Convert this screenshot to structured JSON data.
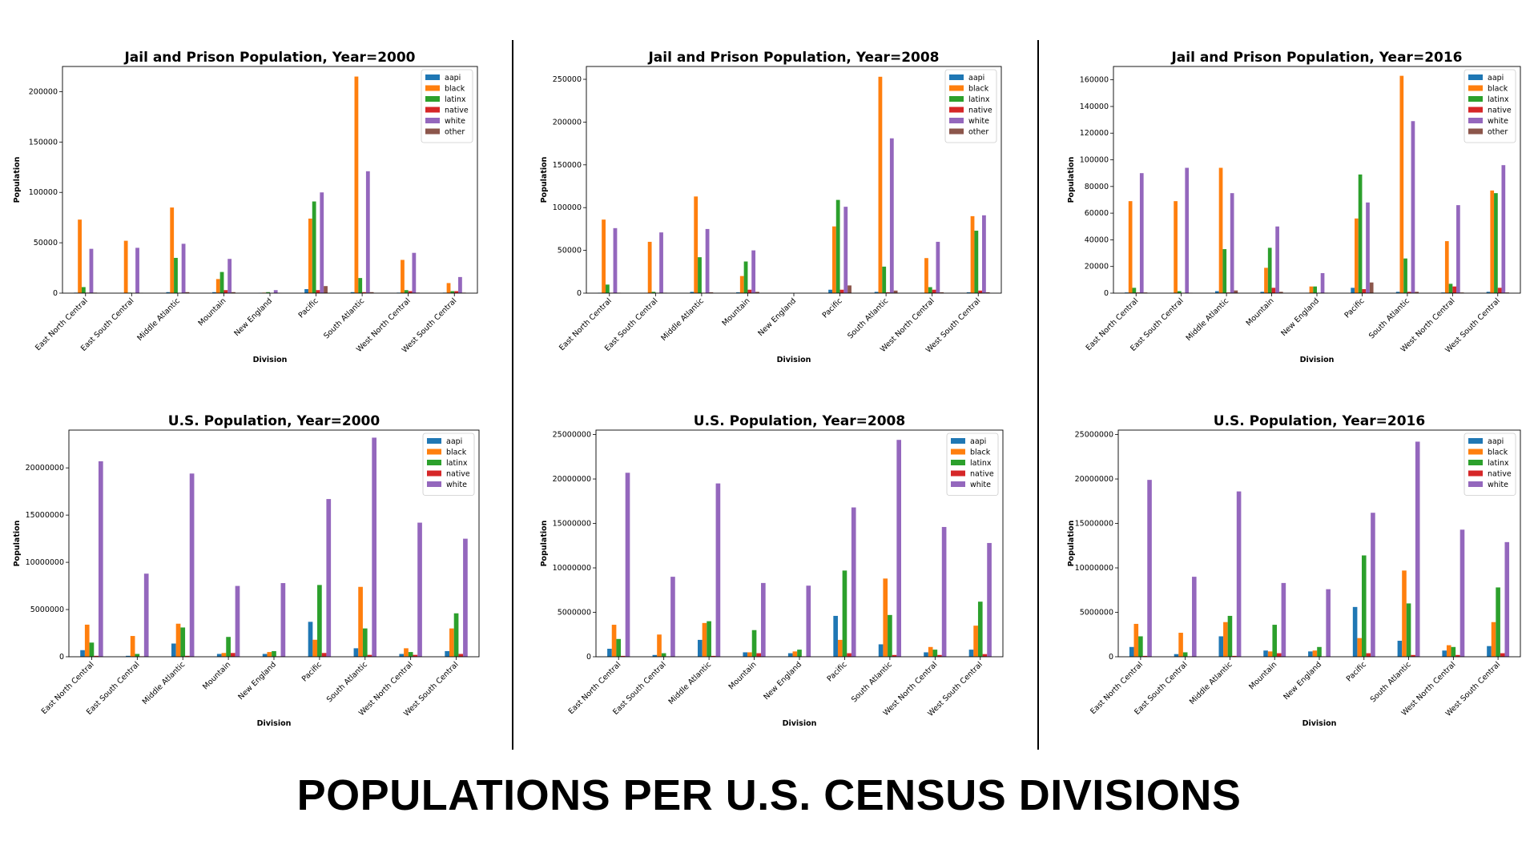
{
  "slide": {
    "title": "POPULATIONS PER U.S. CENSUS DIVISIONS"
  },
  "series_colors": {
    "aapi": "#1f77b4",
    "black": "#ff7f0e",
    "latinx": "#2ca02c",
    "native": "#d62728",
    "white": "#9467bd",
    "other": "#8c564b"
  },
  "chart_data": [
    {
      "type": "bar",
      "title": "Jail and Prison Population, Year=2000",
      "xlabel": "Division",
      "ylabel": "Population",
      "ylim": [
        0,
        225000
      ],
      "ticks": [
        0,
        50000,
        100000,
        150000,
        200000
      ],
      "legend": "top-right",
      "grid": false,
      "categories": [
        "East North Central",
        "East South Central",
        "Middle Atlantic",
        "Mountain",
        "New England",
        "Pacific",
        "South Atlantic",
        "West North Central",
        "West South Central"
      ],
      "series": [
        {
          "name": "aapi",
          "values": [
            500,
            200,
            1000,
            1000,
            300,
            4000,
            1000,
            500,
            500
          ]
        },
        {
          "name": "black",
          "values": [
            73000,
            52000,
            85000,
            14000,
            500,
            74000,
            215000,
            33000,
            10000
          ]
        },
        {
          "name": "latinx",
          "values": [
            6000,
            500,
            35000,
            21000,
            1000,
            91000,
            15000,
            3000,
            2000
          ]
        },
        {
          "name": "native",
          "values": [
            500,
            200,
            300,
            3000,
            100,
            3000,
            1000,
            2000,
            2000
          ]
        },
        {
          "name": "white",
          "values": [
            44000,
            45000,
            49000,
            34000,
            3000,
            100000,
            121000,
            40000,
            16000
          ]
        },
        {
          "name": "other",
          "values": [
            500,
            300,
            1000,
            1000,
            200,
            7000,
            1000,
            500,
            500
          ]
        }
      ]
    },
    {
      "type": "bar",
      "title": "Jail and Prison Population, Year=2008",
      "xlabel": "Division",
      "ylabel": "Population",
      "ylim": [
        0,
        265000
      ],
      "ticks": [
        0,
        50000,
        100000,
        150000,
        200000,
        250000
      ],
      "legend": "top-right",
      "grid": false,
      "categories": [
        "East North Central",
        "East South Central",
        "Middle Atlantic",
        "Mountain",
        "New England",
        "Pacific",
        "South Atlantic",
        "West North Central",
        "West South Central"
      ],
      "series": [
        {
          "name": "aapi",
          "values": [
            500,
            300,
            1500,
            1000,
            0,
            4000,
            1500,
            500,
            1000
          ]
        },
        {
          "name": "black",
          "values": [
            86000,
            60000,
            113000,
            20000,
            0,
            78000,
            253000,
            41000,
            90000
          ]
        },
        {
          "name": "latinx",
          "values": [
            10000,
            1500,
            42000,
            37000,
            0,
            109000,
            31000,
            7000,
            73000
          ]
        },
        {
          "name": "native",
          "values": [
            500,
            300,
            500,
            4000,
            0,
            4000,
            1000,
            4000,
            3000
          ]
        },
        {
          "name": "white",
          "values": [
            76000,
            71000,
            75000,
            50000,
            0,
            101000,
            181000,
            60000,
            91000
          ]
        },
        {
          "name": "other",
          "values": [
            500,
            500,
            1000,
            1500,
            0,
            9000,
            3000,
            1000,
            1000
          ]
        }
      ]
    },
    {
      "type": "bar",
      "title": "Jail and Prison Population, Year=2016",
      "xlabel": "Division",
      "ylabel": "Population",
      "ylim": [
        0,
        170000
      ],
      "ticks": [
        0,
        20000,
        40000,
        60000,
        80000,
        100000,
        120000,
        140000,
        160000
      ],
      "legend": "top-right",
      "grid": false,
      "categories": [
        "East North Central",
        "East South Central",
        "Middle Atlantic",
        "Mountain",
        "New England",
        "Pacific",
        "South Atlantic",
        "West North Central",
        "West South Central"
      ],
      "series": [
        {
          "name": "aapi",
          "values": [
            500,
            300,
            1500,
            1000,
            300,
            4000,
            1000,
            500,
            1000
          ]
        },
        {
          "name": "black",
          "values": [
            69000,
            69000,
            94000,
            19000,
            5000,
            56000,
            163000,
            39000,
            77000
          ]
        },
        {
          "name": "latinx",
          "values": [
            4000,
            1500,
            33000,
            34000,
            5000,
            89000,
            26000,
            7000,
            75000
          ]
        },
        {
          "name": "native",
          "values": [
            500,
            300,
            500,
            4000,
            200,
            3000,
            1000,
            5000,
            4000
          ]
        },
        {
          "name": "white",
          "values": [
            90000,
            94000,
            75000,
            50000,
            15000,
            68000,
            129000,
            66000,
            96000
          ]
        },
        {
          "name": "other",
          "values": [
            500,
            300,
            2000,
            1000,
            300,
            8000,
            1000,
            500,
            500
          ]
        }
      ]
    },
    {
      "type": "bar",
      "title": "U.S. Population, Year=2000",
      "xlabel": "Division",
      "ylabel": "Population",
      "ylim": [
        0,
        24000000
      ],
      "ticks": [
        0,
        5000000,
        10000000,
        15000000,
        20000000
      ],
      "legend": "top-right",
      "grid": false,
      "categories": [
        "East North Central",
        "East South Central",
        "Middle Atlantic",
        "Mountain",
        "New England",
        "Pacific",
        "South Atlantic",
        "West North Central",
        "West South Central"
      ],
      "series": [
        {
          "name": "aapi",
          "values": [
            700000,
            100000,
            1400000,
            300000,
            300000,
            3700000,
            900000,
            300000,
            600000
          ]
        },
        {
          "name": "black",
          "values": [
            3400000,
            2200000,
            3500000,
            400000,
            500000,
            1800000,
            7400000,
            900000,
            3000000
          ]
        },
        {
          "name": "latinx",
          "values": [
            1500000,
            300000,
            3100000,
            2100000,
            600000,
            7600000,
            3000000,
            500000,
            4600000
          ]
        },
        {
          "name": "native",
          "values": [
            100000,
            50000,
            100000,
            400000,
            50000,
            400000,
            200000,
            200000,
            300000
          ]
        },
        {
          "name": "white",
          "values": [
            20700000,
            8800000,
            19400000,
            7500000,
            7800000,
            16700000,
            23200000,
            14200000,
            12500000
          ]
        }
      ]
    },
    {
      "type": "bar",
      "title": "U.S. Population, Year=2008",
      "xlabel": "Division",
      "ylabel": "Population",
      "ylim": [
        0,
        25500000
      ],
      "ticks": [
        0,
        5000000,
        10000000,
        15000000,
        20000000,
        25000000
      ],
      "legend": "top-right",
      "grid": false,
      "categories": [
        "East North Central",
        "East South Central",
        "Middle Atlantic",
        "Mountain",
        "New England",
        "Pacific",
        "South Atlantic",
        "West North Central",
        "West South Central"
      ],
      "series": [
        {
          "name": "aapi",
          "values": [
            900000,
            200000,
            1900000,
            500000,
            400000,
            4600000,
            1400000,
            500000,
            800000
          ]
        },
        {
          "name": "black",
          "values": [
            3600000,
            2500000,
            3800000,
            500000,
            600000,
            1900000,
            8800000,
            1100000,
            3500000
          ]
        },
        {
          "name": "latinx",
          "values": [
            2000000,
            400000,
            4000000,
            3000000,
            800000,
            9700000,
            4700000,
            800000,
            6200000
          ]
        },
        {
          "name": "native",
          "values": [
            100000,
            50000,
            100000,
            400000,
            50000,
            400000,
            200000,
            200000,
            300000
          ]
        },
        {
          "name": "white",
          "values": [
            20700000,
            9000000,
            19500000,
            8300000,
            8000000,
            16800000,
            24400000,
            14600000,
            12800000
          ]
        }
      ]
    },
    {
      "type": "bar",
      "title": "U.S. Population, Year=2016",
      "xlabel": "Division",
      "ylabel": "Population",
      "ylim": [
        0,
        25500000
      ],
      "ticks": [
        0,
        5000000,
        10000000,
        15000000,
        20000000,
        25000000
      ],
      "legend": "top-right",
      "grid": false,
      "categories": [
        "East North Central",
        "East South Central",
        "Middle Atlantic",
        "Mountain",
        "New England",
        "Pacific",
        "South Atlantic",
        "West North Central",
        "West South Central"
      ],
      "series": [
        {
          "name": "aapi",
          "values": [
            1100000,
            300000,
            2300000,
            700000,
            600000,
            5600000,
            1800000,
            700000,
            1200000
          ]
        },
        {
          "name": "black",
          "values": [
            3700000,
            2700000,
            3900000,
            600000,
            700000,
            2100000,
            9700000,
            1300000,
            3900000
          ]
        },
        {
          "name": "latinx",
          "values": [
            2300000,
            500000,
            4600000,
            3600000,
            1100000,
            11400000,
            6000000,
            1100000,
            7800000
          ]
        },
        {
          "name": "native",
          "values": [
            100000,
            50000,
            100000,
            400000,
            50000,
            400000,
            200000,
            200000,
            400000
          ]
        },
        {
          "name": "white",
          "values": [
            19900000,
            9000000,
            18600000,
            8300000,
            7600000,
            16200000,
            24200000,
            14300000,
            12900000
          ]
        }
      ]
    }
  ]
}
